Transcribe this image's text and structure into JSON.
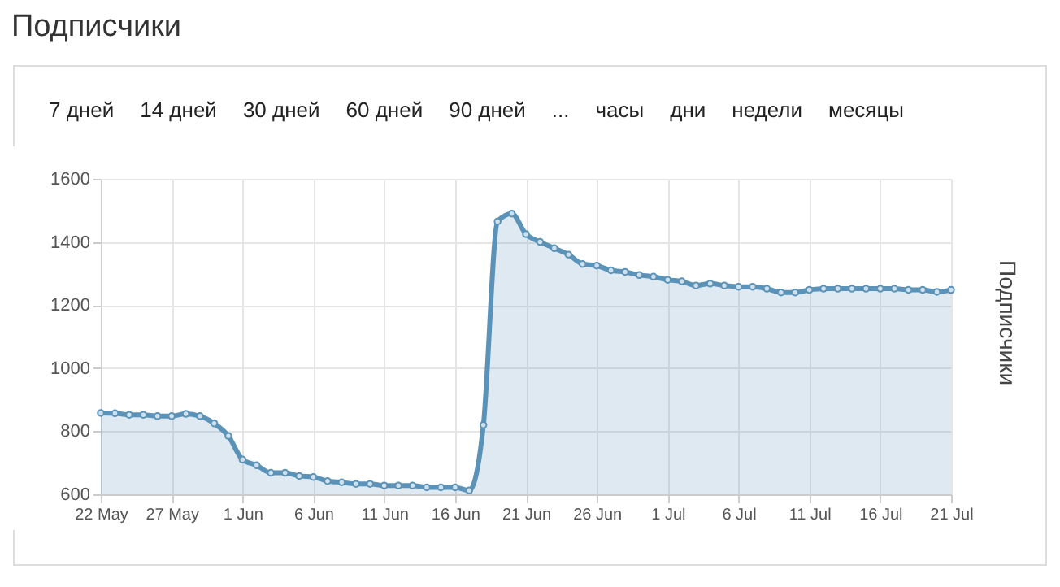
{
  "chart_data": {
    "type": "area",
    "title": "Подписчики",
    "ylabel": "Подписчики",
    "annotations": [
      "7 дней",
      "14 дней",
      "30 дней",
      "60 дней",
      "90 дней",
      "...",
      "часы",
      "дни",
      "недели",
      "месяцы"
    ],
    "x": [
      "--05-22",
      "--05-23",
      "--05-24",
      "--05-25",
      "--05-26",
      "--05-27",
      "--05-28",
      "--05-29",
      "--05-30",
      "--05-31",
      "--06-01",
      "--06-02",
      "--06-03",
      "--06-04",
      "--06-05",
      "--06-06",
      "--06-07",
      "--06-08",
      "--06-09",
      "--06-10",
      "--06-11",
      "--06-12",
      "--06-13",
      "--06-14",
      "--06-15",
      "--06-16",
      "--06-17",
      "--06-18",
      "--06-19",
      "--06-20",
      "--06-21",
      "--06-22",
      "--06-23",
      "--06-24",
      "--06-25",
      "--06-26",
      "--06-27",
      "--06-28",
      "--06-29",
      "--06-30",
      "--07-01",
      "--07-02",
      "--07-03",
      "--07-04",
      "--07-05",
      "--07-06",
      "--07-07",
      "--07-08",
      "--07-09",
      "--07-10",
      "--07-11",
      "--07-12",
      "--07-13",
      "--07-14",
      "--07-15",
      "--07-16",
      "--07-17",
      "--07-18",
      "--07-19",
      "--07-20",
      "--07-21"
    ],
    "series": [
      {
        "color": "#5b93b8",
        "values": [
          858,
          857,
          852,
          852,
          848,
          848,
          855,
          848,
          825,
          785,
          710,
          692,
          668,
          668,
          658,
          655,
          642,
          638,
          633,
          633,
          628,
          628,
          628,
          622,
          622,
          622,
          612,
          820,
          1465,
          1490,
          1425,
          1400,
          1380,
          1360,
          1330,
          1325,
          1310,
          1305,
          1295,
          1290,
          1280,
          1275,
          1262,
          1268,
          1262,
          1258,
          1258,
          1252,
          1240,
          1240,
          1248,
          1252,
          1252,
          1252,
          1252,
          1252,
          1252,
          1248,
          1248,
          1242,
          1248
        ]
      }
    ],
    "xlim": [
      "--05-22",
      "--07-21"
    ],
    "xticks": [
      {
        "value": "--05-22",
        "label": "22 May"
      },
      {
        "value": "--05-27",
        "label": "27 May"
      },
      {
        "value": "--06-01",
        "label": "1 Jun"
      },
      {
        "value": "--06-06",
        "label": "6 Jun"
      },
      {
        "value": "--06-11",
        "label": "11 Jun"
      },
      {
        "value": "--06-16",
        "label": "16 Jun"
      },
      {
        "value": "--06-21",
        "label": "21 Jun"
      },
      {
        "value": "--06-26",
        "label": "26 Jun"
      },
      {
        "value": "--07-01",
        "label": "1 Jul"
      },
      {
        "value": "--07-06",
        "label": "6 Jul"
      },
      {
        "value": "--07-11",
        "label": "11 Jul"
      },
      {
        "value": "--07-16",
        "label": "16 Jul"
      },
      {
        "value": "--07-21",
        "label": "21 Jul"
      }
    ],
    "ylim": [
      600,
      1600
    ],
    "yticks": [
      600,
      800,
      1000,
      1200,
      1400,
      1600
    ],
    "grid": true,
    "marker": "circle"
  }
}
